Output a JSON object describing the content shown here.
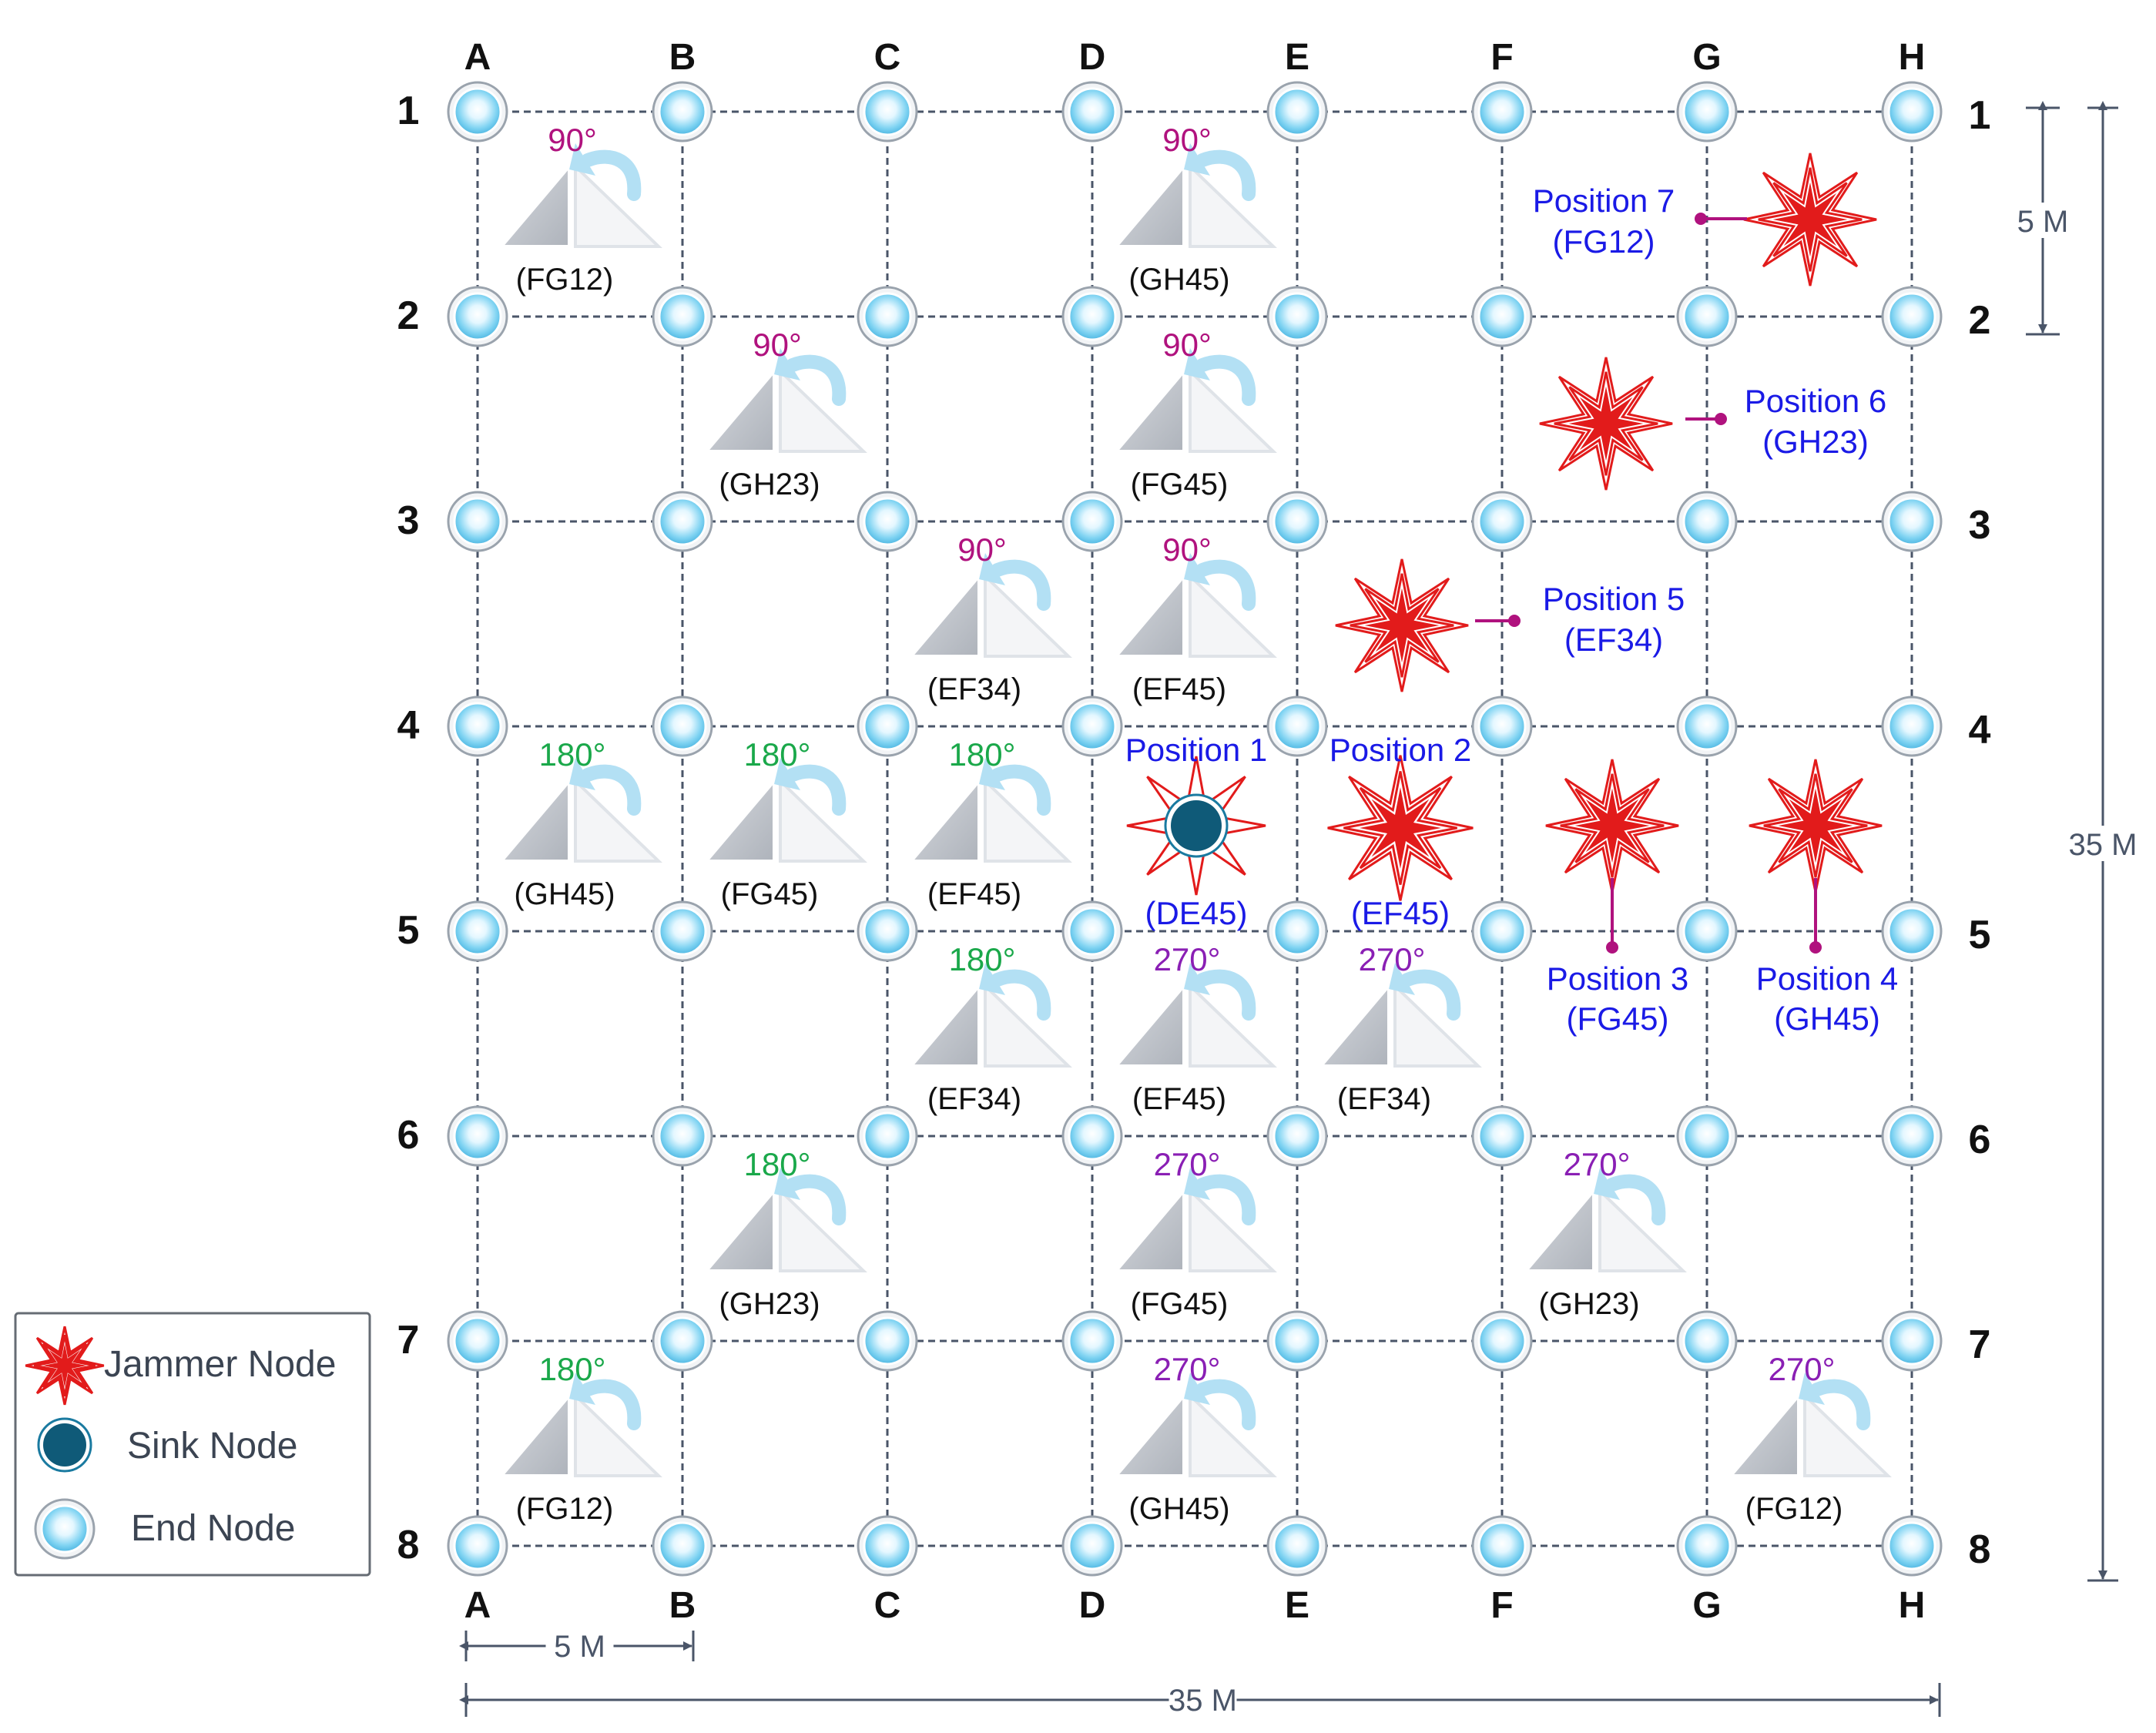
{
  "columns": [
    "A",
    "B",
    "C",
    "D",
    "E",
    "F",
    "G",
    "H"
  ],
  "rows": [
    "1",
    "2",
    "3",
    "4",
    "5",
    "6",
    "7",
    "8"
  ],
  "dimensions": {
    "cell_label": "5 M",
    "total_label": "35 M"
  },
  "legend": {
    "jammer_label": "Jammer Node",
    "sink_label": "Sink Node",
    "end_label": "End Node"
  },
  "reflectors": [
    {
      "id": "r-a12",
      "angle": "90°",
      "label": "(FG12)"
    },
    {
      "id": "r-d12",
      "angle": "90°",
      "label": "(GH45)"
    },
    {
      "id": "r-b23",
      "angle": "90°",
      "label": "(GH23)"
    },
    {
      "id": "r-d23",
      "angle": "90°",
      "label": "(FG45)"
    },
    {
      "id": "r-c34",
      "angle": "90°",
      "label": "(EF34)"
    },
    {
      "id": "r-d34",
      "angle": "90°",
      "label": "(EF45)"
    },
    {
      "id": "r-a45",
      "angle": "180°",
      "label": "(GH45)"
    },
    {
      "id": "r-b45",
      "angle": "180°",
      "label": "(FG45)"
    },
    {
      "id": "r-c45",
      "angle": "180°",
      "label": "(EF45)"
    },
    {
      "id": "r-c56",
      "angle": "180°",
      "label": "(EF34)"
    },
    {
      "id": "r-d56",
      "angle": "270°",
      "label": "(EF45)"
    },
    {
      "id": "r-e56",
      "angle": "270°",
      "label": "(EF34)"
    },
    {
      "id": "r-b67",
      "angle": "180°",
      "label": "(GH23)"
    },
    {
      "id": "r-d67",
      "angle": "270°",
      "label": "(FG45)"
    },
    {
      "id": "r-f67",
      "angle": "270°",
      "label": "(GH23)"
    },
    {
      "id": "r-a78",
      "angle": "180°",
      "label": "(FG12)"
    },
    {
      "id": "r-d78",
      "angle": "270°",
      "label": "(GH45)"
    },
    {
      "id": "r-g78",
      "angle": "270°",
      "label": "(FG12)"
    }
  ],
  "positions": [
    {
      "id": "p1",
      "title": "Position 1",
      "code": "(DE45)",
      "node": "sink"
    },
    {
      "id": "p2",
      "title": "Position 2",
      "code": "(EF45)",
      "node": "jammer"
    },
    {
      "id": "p3",
      "title": "Position 3",
      "code": "(FG45)",
      "node": "jammer"
    },
    {
      "id": "p4",
      "title": "Position 4",
      "code": "(GH45)",
      "node": "jammer"
    },
    {
      "id": "p5",
      "title": "Position 5",
      "code": "(EF34)",
      "node": "jammer"
    },
    {
      "id": "p6",
      "title": "Position 6",
      "code": "(GH23)",
      "node": "jammer"
    },
    {
      "id": "p7",
      "title": "Position 7",
      "code": "(FG12)",
      "node": "jammer"
    }
  ],
  "colors": {
    "angle_90": "#b0127e",
    "angle_180": "#1aa84a",
    "angle_270": "#8a1fb4",
    "position_text": "#1a1ae6",
    "leader": "#b0127e",
    "grid_line": "#4a5568",
    "dimension": "#4a5568",
    "jammer": "#e21b1b",
    "sink": "#0f5a78"
  }
}
